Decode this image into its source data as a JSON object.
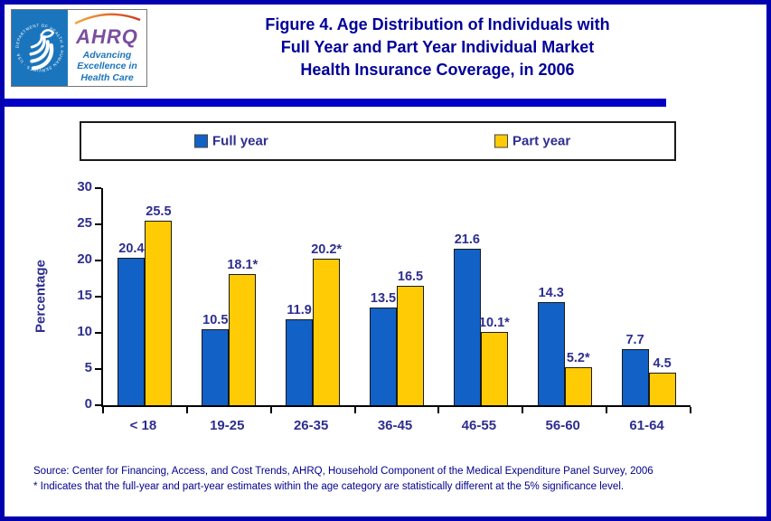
{
  "header": {
    "logo": {
      "hhs_seal_text": "DEPARTMENT OF HEALTH & HUMAN SERVICES · USA",
      "ahrq_acronym": "AHRQ",
      "tagline_lines": [
        "Advancing",
        "Excellence in",
        "Health Care"
      ]
    },
    "title_lines": [
      "Figure 4. Age Distribution of Individuals with",
      "Full Year and Part Year Individual Market",
      "Health Insurance Coverage, in 2006"
    ]
  },
  "chart_data": {
    "type": "bar",
    "title": "Figure 4. Age Distribution of Individuals with Full Year and Part Year Individual Market Health Insurance Coverage, in 2006",
    "categories": [
      "< 18",
      "19-25",
      "26-35",
      "36-45",
      "46-55",
      "56-60",
      "61-64"
    ],
    "series": [
      {
        "name": "Full year",
        "color": "#1261c6",
        "values": [
          20.4,
          10.5,
          11.9,
          13.5,
          21.6,
          14.3,
          7.7
        ],
        "labels": [
          "20.4",
          "10.5",
          "11.9",
          "13.5",
          "21.6",
          "14.3",
          "7.7"
        ]
      },
      {
        "name": "Part year",
        "color": "#ffcb05",
        "values": [
          25.5,
          18.1,
          20.2,
          16.5,
          10.1,
          5.2,
          4.5
        ],
        "labels": [
          "25.5",
          "18.1*",
          "20.2*",
          "16.5",
          "10.1*",
          "5.2*",
          "4.5"
        ]
      }
    ],
    "xlabel": "",
    "ylabel": "Percentage",
    "ylim": [
      0,
      30
    ],
    "yticks": [
      0,
      5,
      10,
      15,
      20,
      25,
      30
    ],
    "grid": false,
    "legend_position": "top"
  },
  "footer": {
    "source_line": "Source: Center for Financing, Access, and Cost Trends, AHRQ, Household Component of the Medical Expenditure Panel Survey, 2006",
    "note_line": "* Indicates that the full-year and part-year estimates within the age category are statistically different at the 5% significance level."
  }
}
